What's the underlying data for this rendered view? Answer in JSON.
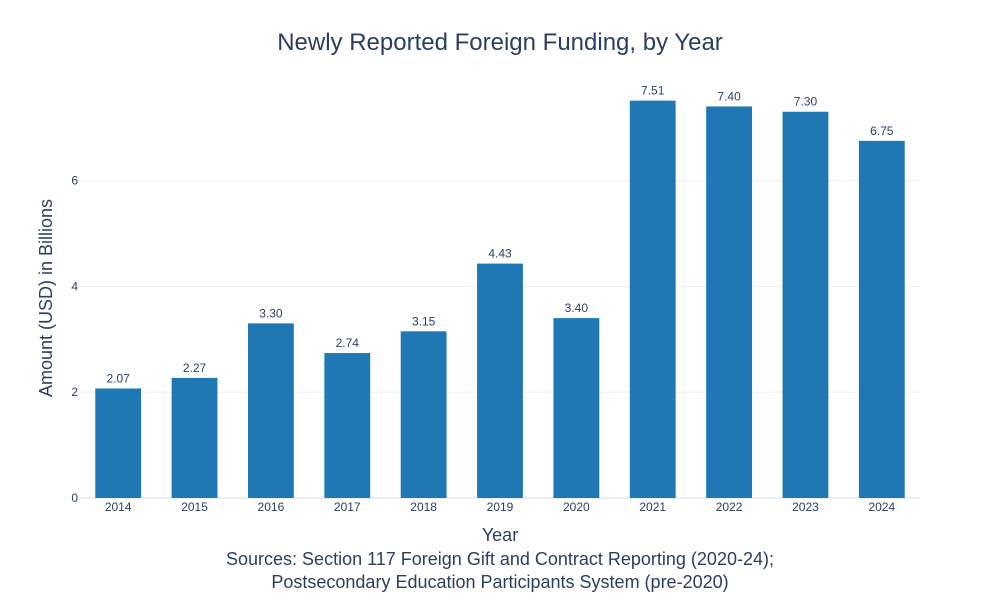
{
  "chart_data": {
    "type": "bar",
    "title": "Newly Reported Foreign Funding, by Year",
    "xlabel": "Year",
    "ylabel": "Amount (USD) in Billions",
    "categories": [
      "2014",
      "2015",
      "2016",
      "2017",
      "2018",
      "2019",
      "2020",
      "2021",
      "2022",
      "2023",
      "2024"
    ],
    "values": [
      2.07,
      2.27,
      3.3,
      2.74,
      3.15,
      4.43,
      3.4,
      7.51,
      7.4,
      7.3,
      6.75
    ],
    "value_labels": [
      "2.07",
      "2.27",
      "3.30",
      "2.74",
      "3.15",
      "4.43",
      "3.40",
      "7.51",
      "7.40",
      "7.30",
      "6.75"
    ],
    "ylim": [
      0,
      7.9
    ],
    "yticks": [
      0,
      2,
      4,
      6
    ],
    "ytick_labels": [
      "0",
      "2",
      "4",
      "6"
    ],
    "grid": true,
    "bar_color": "#1f77b4",
    "source_lines": [
      "Sources: Section 117 Foreign Gift and Contract Reporting (2020-24);",
      "Postsecondary Education Participants System (pre-2020)"
    ]
  }
}
